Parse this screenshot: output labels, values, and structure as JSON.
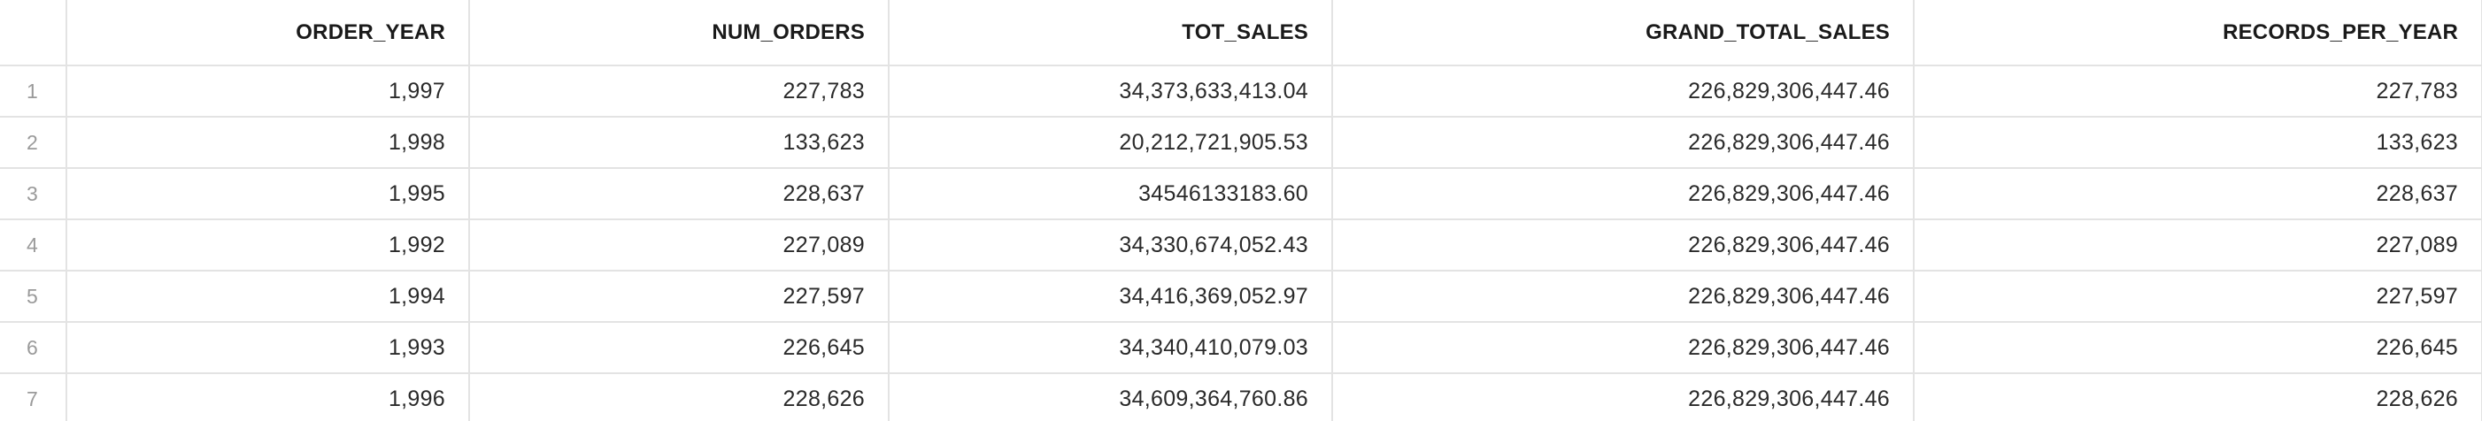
{
  "columns": [
    "",
    "ORDER_YEAR",
    "NUM_ORDERS",
    "TOT_SALES",
    "GRAND_TOTAL_SALES",
    "RECORDS_PER_YEAR"
  ],
  "rows": [
    [
      "1",
      "1,997",
      "227,783",
      "34,373,633,413.04",
      "226,829,306,447.46",
      "227,783"
    ],
    [
      "2",
      "1,998",
      "133,623",
      "20,212,721,905.53",
      "226,829,306,447.46",
      "133,623"
    ],
    [
      "3",
      "1,995",
      "228,637",
      "34546133183.60",
      "226,829,306,447.46",
      "228,637"
    ],
    [
      "4",
      "1,992",
      "227,089",
      "34,330,674,052.43",
      "226,829,306,447.46",
      "227,089"
    ],
    [
      "5",
      "1,994",
      "227,597",
      "34,416,369,052.97",
      "226,829,306,447.46",
      "227,597"
    ],
    [
      "6",
      "1,993",
      "226,645",
      "34,340,410,079.03",
      "226,829,306,447.46",
      "226,645"
    ],
    [
      "7",
      "1,996",
      "228,626",
      "34,609,364,760.86",
      "226,829,306,447.46",
      "228,626"
    ]
  ]
}
